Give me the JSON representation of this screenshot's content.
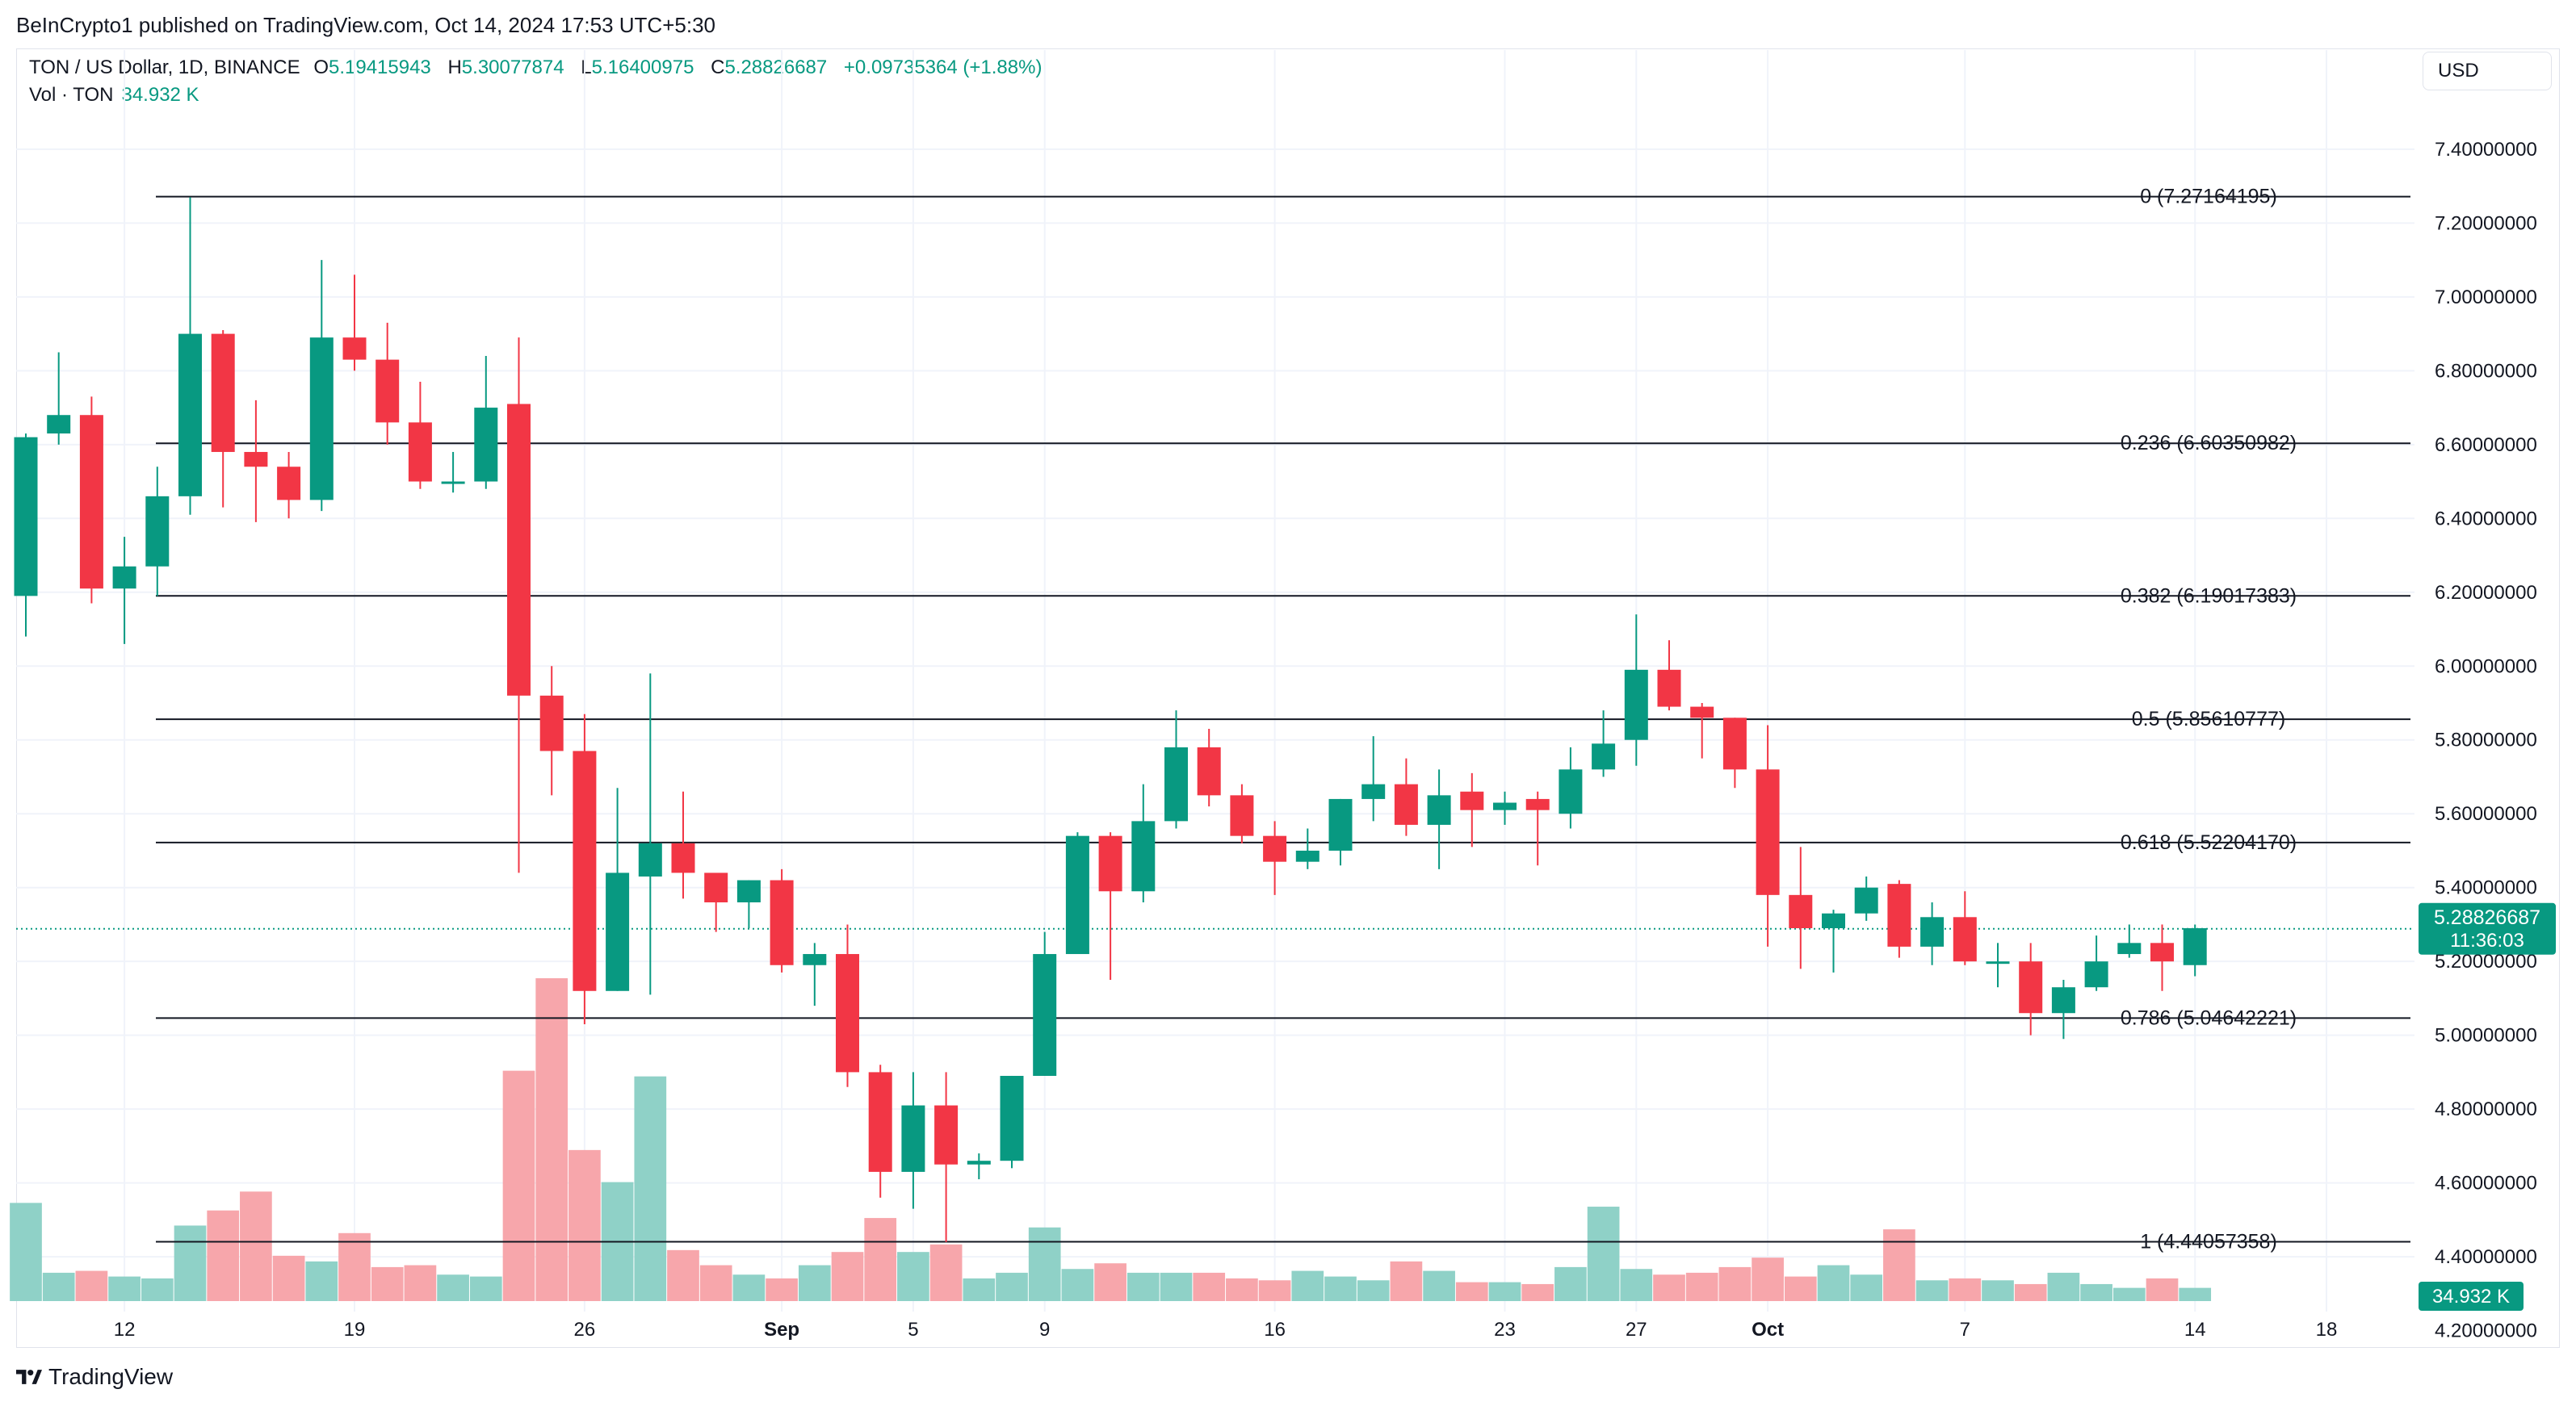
{
  "header": {
    "published": "BeInCrypto1 published on TradingView.com, Oct 14, 2024 17:53 UTC+5:30"
  },
  "legend": {
    "symbol": "TON / US Dollar, 1D, BINANCE",
    "o_key": "O",
    "o_val": "5.19415943",
    "h_key": "H",
    "h_val": "5.30077874",
    "l_key": "L",
    "l_val": "5.16400975",
    "c_key": "C",
    "c_val": "5.28826687",
    "change": "+0.09735364 (+1.88%)",
    "vol_label": "Vol · TON",
    "vol_val": "34.932 K"
  },
  "currency": "USD",
  "price_tag": {
    "price": "5.28826687",
    "countdown": "11:36:03"
  },
  "volume_tag": "34.932 K",
  "footer": {
    "brand": "TradingView"
  },
  "colors": {
    "up": "#089981",
    "down": "#f23645",
    "vol_up": "#8fd1c7",
    "vol_down": "#f7a6ab",
    "grid": "#f0f3fa",
    "text": "#131722"
  },
  "chart_data": {
    "type": "candlestick",
    "ylim": [
      4.28,
      7.52
    ],
    "y_ticks": [
      "7.40000000",
      "7.20000000",
      "7.00000000",
      "6.80000000",
      "6.60000000",
      "6.40000000",
      "6.20000000",
      "6.00000000",
      "5.80000000",
      "5.60000000",
      "5.40000000",
      "5.20000000",
      "5.00000000",
      "4.80000000",
      "4.60000000",
      "4.40000000",
      "4.20000000"
    ],
    "x_ticks": [
      {
        "i": 3,
        "label": "12"
      },
      {
        "i": 10,
        "label": "19"
      },
      {
        "i": 17,
        "label": "26"
      },
      {
        "i": 23,
        "label": "Sep"
      },
      {
        "i": 27,
        "label": "5"
      },
      {
        "i": 31,
        "label": "9"
      },
      {
        "i": 38,
        "label": "16"
      },
      {
        "i": 45,
        "label": "23"
      },
      {
        "i": 49,
        "label": "27"
      },
      {
        "i": 53,
        "label": "Oct"
      },
      {
        "i": 59,
        "label": "7"
      },
      {
        "i": 66,
        "label": "14"
      },
      {
        "i": 70,
        "label": "18"
      }
    ],
    "fib_levels": [
      {
        "label": "0 (7.27164195)",
        "value": 7.27164195
      },
      {
        "label": "0.236 (6.60350982)",
        "value": 6.60350982
      },
      {
        "label": "0.382 (6.19017383)",
        "value": 6.19017383
      },
      {
        "label": "0.5 (5.85610777)",
        "value": 5.85610777
      },
      {
        "label": "0.618 (5.52204170)",
        "value": 5.5220417
      },
      {
        "label": "0.786 (5.04642221)",
        "value": 5.04642221
      },
      {
        "label": "1 (4.44057358)",
        "value": 4.44057358
      }
    ],
    "last_price": 5.28826687,
    "candles": [
      {
        "o": 6.19,
        "h": 6.63,
        "l": 6.08,
        "c": 6.62,
        "v": 52
      },
      {
        "o": 6.63,
        "h": 6.85,
        "l": 6.6,
        "c": 6.68,
        "v": 15
      },
      {
        "o": 6.68,
        "h": 6.73,
        "l": 6.17,
        "c": 6.21,
        "v": 16
      },
      {
        "o": 6.21,
        "h": 6.35,
        "l": 6.06,
        "c": 6.27,
        "v": 13
      },
      {
        "o": 6.27,
        "h": 6.54,
        "l": 6.19,
        "c": 6.46,
        "v": 12
      },
      {
        "o": 6.46,
        "h": 7.27,
        "l": 6.41,
        "c": 6.9,
        "v": 40
      },
      {
        "o": 6.9,
        "h": 6.91,
        "l": 6.43,
        "c": 6.58,
        "v": 48
      },
      {
        "o": 6.58,
        "h": 6.72,
        "l": 6.39,
        "c": 6.54,
        "v": 58
      },
      {
        "o": 6.54,
        "h": 6.58,
        "l": 6.4,
        "c": 6.45,
        "v": 24
      },
      {
        "o": 6.45,
        "h": 7.1,
        "l": 6.42,
        "c": 6.89,
        "v": 21
      },
      {
        "o": 6.89,
        "h": 7.06,
        "l": 6.8,
        "c": 6.83,
        "v": 36
      },
      {
        "o": 6.83,
        "h": 6.93,
        "l": 6.6,
        "c": 6.66,
        "v": 18
      },
      {
        "o": 6.66,
        "h": 6.77,
        "l": 6.48,
        "c": 6.5,
        "v": 19
      },
      {
        "o": 6.5,
        "h": 6.58,
        "l": 6.47,
        "c": 6.5,
        "v": 14
      },
      {
        "o": 6.5,
        "h": 6.84,
        "l": 6.48,
        "c": 6.7,
        "v": 13
      },
      {
        "o": 6.71,
        "h": 6.89,
        "l": 5.44,
        "c": 5.92,
        "v": 122
      },
      {
        "o": 5.92,
        "h": 6.0,
        "l": 5.65,
        "c": 5.77,
        "v": 171
      },
      {
        "o": 5.77,
        "h": 5.87,
        "l": 5.03,
        "c": 5.12,
        "v": 80
      },
      {
        "o": 5.12,
        "h": 5.67,
        "l": 5.12,
        "c": 5.44,
        "v": 63
      },
      {
        "o": 5.43,
        "h": 5.98,
        "l": 5.11,
        "c": 5.52,
        "v": 119
      },
      {
        "o": 5.52,
        "h": 5.66,
        "l": 5.37,
        "c": 5.44,
        "v": 27
      },
      {
        "o": 5.44,
        "h": 5.43,
        "l": 5.28,
        "c": 5.36,
        "v": 19
      },
      {
        "o": 5.36,
        "h": 5.42,
        "l": 5.29,
        "c": 5.42,
        "v": 14
      },
      {
        "o": 5.42,
        "h": 5.45,
        "l": 5.17,
        "c": 5.19,
        "v": 12
      },
      {
        "o": 5.19,
        "h": 5.25,
        "l": 5.08,
        "c": 5.22,
        "v": 19
      },
      {
        "o": 5.22,
        "h": 5.3,
        "l": 4.86,
        "c": 4.9,
        "v": 26
      },
      {
        "o": 4.9,
        "h": 4.92,
        "l": 4.56,
        "c": 4.63,
        "v": 44
      },
      {
        "o": 4.63,
        "h": 4.9,
        "l": 4.53,
        "c": 4.81,
        "v": 26
      },
      {
        "o": 4.81,
        "h": 4.9,
        "l": 4.44,
        "c": 4.65,
        "v": 30
      },
      {
        "o": 4.65,
        "h": 4.68,
        "l": 4.61,
        "c": 4.66,
        "v": 12
      },
      {
        "o": 4.66,
        "h": 4.89,
        "l": 4.64,
        "c": 4.89,
        "v": 15
      },
      {
        "o": 4.89,
        "h": 5.28,
        "l": 4.89,
        "c": 5.22,
        "v": 39
      },
      {
        "o": 5.22,
        "h": 5.55,
        "l": 5.22,
        "c": 5.54,
        "v": 17
      },
      {
        "o": 5.54,
        "h": 5.55,
        "l": 5.15,
        "c": 5.39,
        "v": 20
      },
      {
        "o": 5.39,
        "h": 5.68,
        "l": 5.36,
        "c": 5.58,
        "v": 15
      },
      {
        "o": 5.58,
        "h": 5.88,
        "l": 5.56,
        "c": 5.78,
        "v": 15
      },
      {
        "o": 5.78,
        "h": 5.83,
        "l": 5.62,
        "c": 5.65,
        "v": 15
      },
      {
        "o": 5.65,
        "h": 5.68,
        "l": 5.52,
        "c": 5.54,
        "v": 12
      },
      {
        "o": 5.54,
        "h": 5.58,
        "l": 5.38,
        "c": 5.47,
        "v": 11
      },
      {
        "o": 5.47,
        "h": 5.56,
        "l": 5.45,
        "c": 5.5,
        "v": 16
      },
      {
        "o": 5.5,
        "h": 5.64,
        "l": 5.46,
        "c": 5.64,
        "v": 13
      },
      {
        "o": 5.64,
        "h": 5.81,
        "l": 5.58,
        "c": 5.68,
        "v": 11
      },
      {
        "o": 5.68,
        "h": 5.75,
        "l": 5.54,
        "c": 5.57,
        "v": 21
      },
      {
        "o": 5.57,
        "h": 5.72,
        "l": 5.45,
        "c": 5.65,
        "v": 16
      },
      {
        "o": 5.66,
        "h": 5.71,
        "l": 5.51,
        "c": 5.61,
        "v": 10
      },
      {
        "o": 5.61,
        "h": 5.66,
        "l": 5.57,
        "c": 5.63,
        "v": 10
      },
      {
        "o": 5.64,
        "h": 5.66,
        "l": 5.46,
        "c": 5.61,
        "v": 9
      },
      {
        "o": 5.6,
        "h": 5.78,
        "l": 5.56,
        "c": 5.72,
        "v": 18
      },
      {
        "o": 5.72,
        "h": 5.88,
        "l": 5.7,
        "c": 5.79,
        "v": 50
      },
      {
        "o": 5.8,
        "h": 6.14,
        "l": 5.73,
        "c": 5.99,
        "v": 17
      },
      {
        "o": 5.99,
        "h": 6.07,
        "l": 5.88,
        "c": 5.89,
        "v": 14
      },
      {
        "o": 5.89,
        "h": 5.9,
        "l": 5.75,
        "c": 5.86,
        "v": 15
      },
      {
        "o": 5.86,
        "h": 5.86,
        "l": 5.67,
        "c": 5.72,
        "v": 18
      },
      {
        "o": 5.72,
        "h": 5.84,
        "l": 5.24,
        "c": 5.38,
        "v": 23
      },
      {
        "o": 5.38,
        "h": 5.51,
        "l": 5.18,
        "c": 5.29,
        "v": 13
      },
      {
        "o": 5.29,
        "h": 5.34,
        "l": 5.17,
        "c": 5.33,
        "v": 19
      },
      {
        "o": 5.33,
        "h": 5.43,
        "l": 5.31,
        "c": 5.4,
        "v": 14
      },
      {
        "o": 5.41,
        "h": 5.42,
        "l": 5.21,
        "c": 5.24,
        "v": 38
      },
      {
        "o": 5.24,
        "h": 5.36,
        "l": 5.19,
        "c": 5.32,
        "v": 11
      },
      {
        "o": 5.32,
        "h": 5.39,
        "l": 5.19,
        "c": 5.2,
        "v": 12
      },
      {
        "o": 5.2,
        "h": 5.25,
        "l": 5.13,
        "c": 5.2,
        "v": 11
      },
      {
        "o": 5.2,
        "h": 5.25,
        "l": 5.0,
        "c": 5.06,
        "v": 9
      },
      {
        "o": 5.06,
        "h": 5.15,
        "l": 4.99,
        "c": 5.13,
        "v": 15
      },
      {
        "o": 5.13,
        "h": 5.27,
        "l": 5.12,
        "c": 5.2,
        "v": 9
      },
      {
        "o": 5.22,
        "h": 5.3,
        "l": 5.21,
        "c": 5.25,
        "v": 7
      },
      {
        "o": 5.25,
        "h": 5.3,
        "l": 5.12,
        "c": 5.2,
        "v": 12
      },
      {
        "o": 5.19,
        "h": 5.3,
        "l": 5.16,
        "c": 5.29,
        "v": 7
      }
    ]
  }
}
